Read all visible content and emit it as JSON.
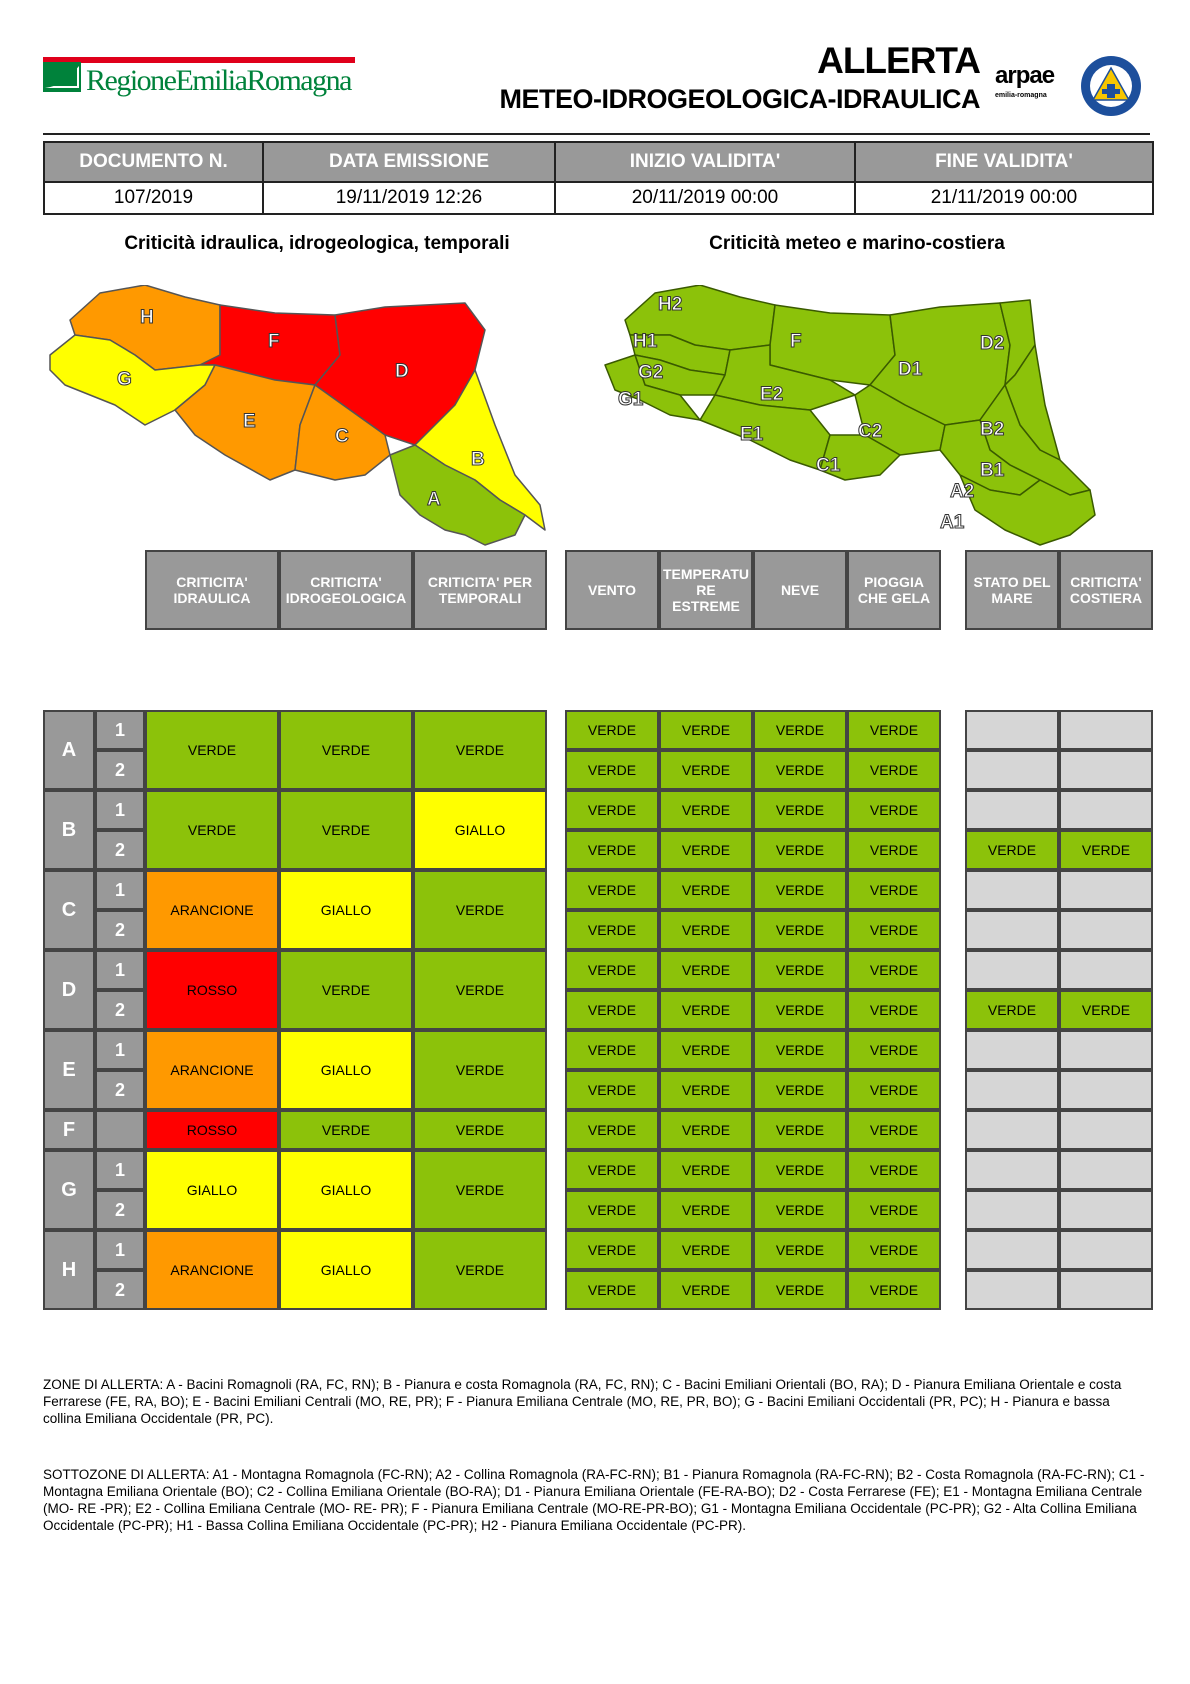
{
  "header": {
    "region_logo_text": "RegioneEmiliaRomagna",
    "title_line1": "ALLERTA",
    "title_line2": "METEO-IDROGEOLOGICA-IDRAULICA",
    "arpae_logo": "arpae",
    "arpae_sub": "emilia-romagna",
    "civil_protection_logo": "protezione-civile-icon"
  },
  "document": {
    "columns": [
      "DOCUMENTO N.",
      "DATA EMISSIONE",
      "INIZIO VALIDITA'",
      "FINE VALIDITA'"
    ],
    "values": [
      "107/2019",
      "19/11/2019 12:26",
      "20/11/2019 00:00",
      "21/11/2019 00:00"
    ]
  },
  "maps": {
    "left_title": "Criticità idraulica, idrogeologica, temporali",
    "right_title": "Criticità meteo e marino-costiera",
    "left_labels": [
      "H",
      "F",
      "D",
      "G",
      "E",
      "C",
      "B",
      "A"
    ],
    "right_labels": [
      "H2",
      "H1",
      "G2",
      "G1",
      "F",
      "E2",
      "E1",
      "D1",
      "D2",
      "C2",
      "C1",
      "B2",
      "B1",
      "A2",
      "A1"
    ]
  },
  "colors": {
    "VERDE": "#8cc20a",
    "GIALLO": "#ffff00",
    "ARANCIONE": "#ff9900",
    "ROSSO": "#ff0000",
    "header_gray": "#999999",
    "empty_gray": "#d6d6d6"
  },
  "table": {
    "group1_headers": [
      "CRITICITA' IDRAULICA",
      "CRITICITA' IDROGEOLOGICA",
      "CRITICITA' PER TEMPORALI"
    ],
    "group2_headers": [
      "VENTO",
      "TEMPERATU RE ESTREME",
      "NEVE",
      "PIOGGIA CHE GELA"
    ],
    "group3_headers": [
      "STATO DEL MARE",
      "CRITICITA' COSTIERA"
    ],
    "zones": [
      {
        "zone": "A",
        "subs": [
          "1",
          "2"
        ],
        "idraulica": "VERDE",
        "idrogeologica": "VERDE",
        "temporali": "VERDE",
        "meteo": [
          [
            "VERDE",
            "VERDE",
            "VERDE",
            "VERDE"
          ],
          [
            "VERDE",
            "VERDE",
            "VERDE",
            "VERDE"
          ]
        ],
        "mare": [
          [
            "",
            ""
          ],
          [
            "",
            ""
          ]
        ]
      },
      {
        "zone": "B",
        "subs": [
          "1",
          "2"
        ],
        "idraulica": "VERDE",
        "idrogeologica": "VERDE",
        "temporali": "GIALLO",
        "meteo": [
          [
            "VERDE",
            "VERDE",
            "VERDE",
            "VERDE"
          ],
          [
            "VERDE",
            "VERDE",
            "VERDE",
            "VERDE"
          ]
        ],
        "mare": [
          [
            "",
            ""
          ],
          [
            "VERDE",
            "VERDE"
          ]
        ]
      },
      {
        "zone": "C",
        "subs": [
          "1",
          "2"
        ],
        "idraulica": "ARANCIONE",
        "idrogeologica": "GIALLO",
        "temporali": "VERDE",
        "meteo": [
          [
            "VERDE",
            "VERDE",
            "VERDE",
            "VERDE"
          ],
          [
            "VERDE",
            "VERDE",
            "VERDE",
            "VERDE"
          ]
        ],
        "mare": [
          [
            "",
            ""
          ],
          [
            "",
            ""
          ]
        ]
      },
      {
        "zone": "D",
        "subs": [
          "1",
          "2"
        ],
        "idraulica": "ROSSO",
        "idrogeologica": "VERDE",
        "temporali": "VERDE",
        "meteo": [
          [
            "VERDE",
            "VERDE",
            "VERDE",
            "VERDE"
          ],
          [
            "VERDE",
            "VERDE",
            "VERDE",
            "VERDE"
          ]
        ],
        "mare": [
          [
            "",
            ""
          ],
          [
            "VERDE",
            "VERDE"
          ]
        ]
      },
      {
        "zone": "E",
        "subs": [
          "1",
          "2"
        ],
        "idraulica": "ARANCIONE",
        "idrogeologica": "GIALLO",
        "temporali": "VERDE",
        "meteo": [
          [
            "VERDE",
            "VERDE",
            "VERDE",
            "VERDE"
          ],
          [
            "VERDE",
            "VERDE",
            "VERDE",
            "VERDE"
          ]
        ],
        "mare": [
          [
            "",
            ""
          ],
          [
            "",
            ""
          ]
        ]
      },
      {
        "zone": "F",
        "subs": [],
        "idraulica": "ROSSO",
        "idrogeologica": "VERDE",
        "temporali": "VERDE",
        "meteo": [
          [
            "VERDE",
            "VERDE",
            "VERDE",
            "VERDE"
          ]
        ],
        "mare": [
          [
            "",
            ""
          ]
        ]
      },
      {
        "zone": "G",
        "subs": [
          "1",
          "2"
        ],
        "idraulica": "GIALLO",
        "idrogeologica": "GIALLO",
        "temporali": "VERDE",
        "meteo": [
          [
            "VERDE",
            "VERDE",
            "VERDE",
            "VERDE"
          ],
          [
            "VERDE",
            "VERDE",
            "VERDE",
            "VERDE"
          ]
        ],
        "mare": [
          [
            "",
            ""
          ],
          [
            "",
            ""
          ]
        ]
      },
      {
        "zone": "H",
        "subs": [
          "1",
          "2"
        ],
        "idraulica": "ARANCIONE",
        "idrogeologica": "GIALLO",
        "temporali": "VERDE",
        "meteo": [
          [
            "VERDE",
            "VERDE",
            "VERDE",
            "VERDE"
          ],
          [
            "VERDE",
            "VERDE",
            "VERDE",
            "VERDE"
          ]
        ],
        "mare": [
          [
            "",
            ""
          ],
          [
            "",
            ""
          ]
        ]
      }
    ]
  },
  "notes": {
    "zone": "ZONE DI ALLERTA: A - Bacini Romagnoli (RA, FC, RN); B - Pianura e costa Romagnola (RA, FC, RN); C - Bacini Emiliani Orientali (BO, RA); D - Pianura Emiliana Orientale e costa Ferrarese (FE, RA, BO); E - Bacini Emiliani Centrali (MO, RE, PR); F - Pianura Emiliana Centrale (MO, RE, PR, BO); G - Bacini Emiliani Occidentali (PR, PC); H - Pianura e bassa collina Emiliana Occidentale (PR, PC).",
    "sottozone": "SOTTOZONE DI ALLERTA: A1 - Montagna Romagnola (FC-RN); A2 - Collina Romagnola (RA-FC-RN); B1 - Pianura Romagnola (RA-FC-RN); B2 - Costa Romagnola  (RA-FC-RN); C1 - Montagna Emiliana Orientale (BO); C2 - Collina Emiliana Orientale (BO-RA); D1 - Pianura Emiliana Orientale (FE-RA-BO); D2 - Costa Ferrarese (FE); E1 - Montagna Emiliana Centrale (MO- RE -PR); E2 - Collina Emiliana Centrale (MO- RE- PR); F - Pianura Emiliana Centrale (MO-RE-PR-BO); G1 - Montagna Emiliana Occidentale (PC-PR); G2 - Alta Collina Emiliana Occidentale (PC-PR); H1 - Bassa Collina Emiliana Occidentale (PC-PR); H2 - Pianura Emiliana Occidentale (PC-PR)."
  }
}
